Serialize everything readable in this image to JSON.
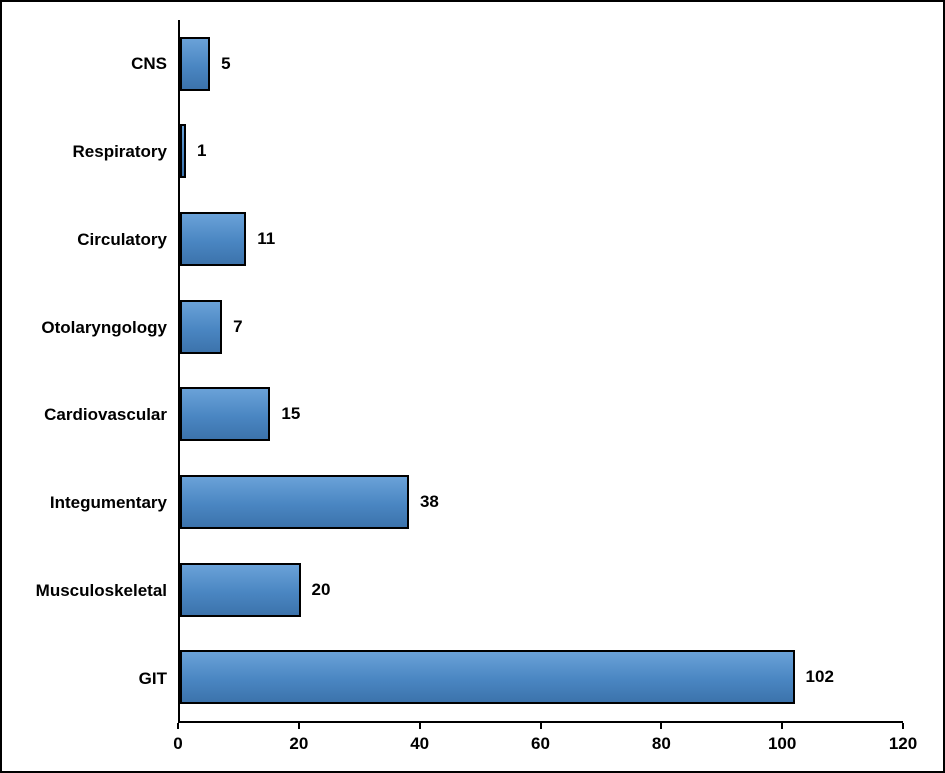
{
  "chart_data": {
    "type": "bar",
    "orientation": "horizontal",
    "title": "",
    "xlabel": "",
    "ylabel": "",
    "categories": [
      "CNS",
      "Respiratory",
      "Circulatory",
      "Otolaryngology",
      "Cardiovascular",
      "Integumentary",
      "Musculoskeletal",
      "GIT"
    ],
    "values": [
      5,
      1,
      11,
      7,
      15,
      38,
      20,
      102
    ],
    "xlim": [
      0,
      120
    ],
    "xticks": [
      0,
      20,
      40,
      60,
      80,
      100,
      120
    ],
    "grid": false,
    "legend": false,
    "data_labels": true,
    "colors": {
      "bar_fill_top": "#6aa2d8",
      "bar_fill_mid": "#4a86c2",
      "bar_fill_bottom": "#3c73ac",
      "bar_border": "#000000",
      "axis": "#000000",
      "text": "#000000",
      "background": "#ffffff"
    }
  }
}
